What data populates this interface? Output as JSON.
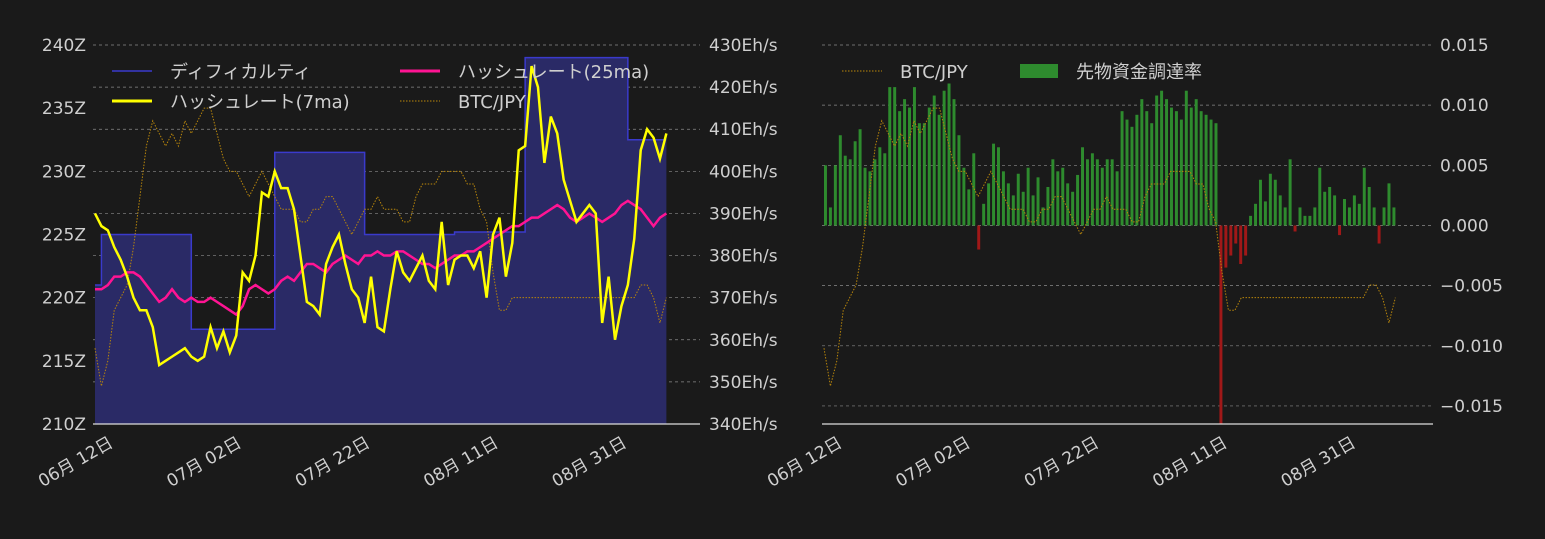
{
  "chart_data": [
    {
      "type": "line",
      "title": "",
      "xlabel": "",
      "ylabel_left": "",
      "ylabel_right": "",
      "x_tick_labels": [
        "06月 12日",
        "07月 02日",
        "07月 22日",
        "08月 11日",
        "08月 31日"
      ],
      "x_tick_days": [
        3,
        23,
        43,
        63,
        83
      ],
      "y_left_ticks": [
        "210Z",
        "215Z",
        "220Z",
        "225Z",
        "230Z",
        "235Z",
        "240Z"
      ],
      "y_left_range": [
        210,
        240
      ],
      "y_right_ticks": [
        "340Eh/s",
        "350Eh/s",
        "360Eh/s",
        "370Eh/s",
        "380Eh/s",
        "390Eh/s",
        "400Eh/s",
        "410Eh/s",
        "420Eh/s",
        "430Eh/s"
      ],
      "y_right_range": [
        340,
        430
      ],
      "legend_position": "top",
      "legend": [
        {
          "label": "ディフィカルティ",
          "key": "difficulty"
        },
        {
          "label": "ハッシュレート(25ma)",
          "key": "hash25"
        },
        {
          "label": "ハッシュレート(7ma)",
          "key": "hash7"
        },
        {
          "label": "BTC/JPY",
          "key": "btc"
        }
      ],
      "difficulty_steps": [
        [
          0,
          221
        ],
        [
          1,
          225
        ],
        [
          15,
          217.5
        ],
        [
          28,
          231.5
        ],
        [
          42,
          225
        ],
        [
          56,
          225.2
        ],
        [
          67,
          239
        ],
        [
          83,
          232.5
        ],
        [
          90,
          232.5
        ]
      ],
      "hash7": [
        390,
        387,
        386,
        382,
        379,
        375,
        370,
        367,
        367,
        363,
        354,
        355,
        356,
        357,
        358,
        356,
        355,
        356,
        363,
        358,
        362,
        357,
        361,
        376,
        374,
        380,
        395,
        394,
        400,
        396,
        396,
        391,
        380,
        369,
        368,
        366,
        378,
        382,
        385,
        378,
        372,
        370,
        364,
        375,
        363,
        362,
        372,
        381,
        376,
        374,
        377,
        380,
        374,
        372,
        388,
        373,
        379,
        380,
        380,
        377,
        381,
        370,
        385,
        389,
        375,
        383,
        405,
        406,
        425,
        420,
        402,
        413,
        409,
        398,
        393,
        388,
        390,
        392,
        390,
        364,
        375,
        360,
        368,
        373,
        384,
        405,
        410,
        408,
        403,
        409
      ],
      "hash25": [
        372,
        372,
        373,
        375,
        375,
        376,
        376,
        375,
        373,
        371,
        369,
        370,
        372,
        370,
        369,
        370,
        369,
        369,
        370,
        369,
        368,
        367,
        366,
        368,
        372,
        373,
        372,
        371,
        372,
        374,
        375,
        374,
        376,
        378,
        378,
        377,
        376,
        378,
        379,
        380,
        379,
        378,
        380,
        380,
        381,
        380,
        380,
        381,
        381,
        380,
        379,
        378,
        378,
        377,
        378,
        379,
        380,
        380,
        381,
        381,
        382,
        383,
        384,
        385,
        386,
        387,
        387,
        388,
        389,
        389,
        390,
        391,
        392,
        391,
        389,
        388,
        389,
        390,
        389,
        388,
        389,
        390,
        392,
        393,
        392,
        391,
        389,
        387,
        389,
        390
      ],
      "btc": [
        216,
        213,
        215,
        219,
        220,
        221,
        224,
        228,
        232,
        234,
        233,
        232,
        233,
        232,
        234,
        233,
        234,
        235,
        235,
        233,
        231,
        230,
        230,
        229,
        228,
        229,
        230,
        229,
        228,
        227,
        227,
        227,
        226,
        226,
        227,
        227,
        228,
        228,
        227,
        226,
        225,
        226,
        227,
        227,
        228,
        227,
        227,
        227,
        226,
        226,
        228,
        229,
        229,
        229,
        230,
        230,
        230,
        230,
        229,
        229,
        227,
        226,
        222,
        219,
        219,
        220,
        220,
        220,
        220,
        220,
        220,
        220,
        220,
        220,
        220,
        220,
        220,
        220,
        220,
        220,
        220,
        220,
        220,
        220,
        220,
        221,
        221,
        220,
        218,
        220
      ]
    },
    {
      "type": "bar",
      "title": "",
      "xlabel": "",
      "ylabel": "",
      "x_tick_labels": [
        "06月 12日",
        "07月 02日",
        "07月 22日",
        "08月 11日",
        "08月 31日"
      ],
      "x_tick_days": [
        3,
        23,
        43,
        63,
        83
      ],
      "y_right_ticks": [
        "0.015",
        "0.010",
        "0.005",
        "0.000",
        "−0.005",
        "−0.010",
        "−0.015"
      ],
      "y_range": [
        -0.0165,
        0.015
      ],
      "legend_position": "top-left",
      "legend": [
        {
          "label": "BTC/JPY",
          "key": "btc"
        },
        {
          "label": "先物資金調達率",
          "key": "funding"
        }
      ],
      "funding_rate": [
        0.005,
        0.0015,
        0.005,
        0.0075,
        0.0058,
        0.0055,
        0.007,
        0.008,
        0.0048,
        0.0045,
        0.0055,
        0.0065,
        0.006,
        0.0115,
        0.0115,
        0.0095,
        0.0105,
        0.0098,
        0.0115,
        0.0085,
        0.0085,
        0.0098,
        0.0108,
        0.0092,
        0.0112,
        0.0118,
        0.0105,
        0.0075,
        0.0048,
        0.003,
        0.006,
        -0.002,
        0.0018,
        0.0035,
        0.0068,
        0.0065,
        0.0045,
        0.0035,
        0.0025,
        0.0043,
        0.0028,
        0.0048,
        0.0025,
        0.004,
        0.0015,
        0.0032,
        0.0055,
        0.0045,
        0.0048,
        0.0035,
        0.0028,
        0.0042,
        0.0065,
        0.0055,
        0.006,
        0.0055,
        0.0048,
        0.0055,
        0.0055,
        0.0045,
        0.0095,
        0.0088,
        0.0082,
        0.0092,
        0.0105,
        0.0095,
        0.0085,
        0.0108,
        0.0112,
        0.0105,
        0.0098,
        0.0095,
        0.0088,
        0.0112,
        0.0098,
        0.0105,
        0.0095,
        0.0092,
        0.0088,
        0.0085,
        -0.0165,
        -0.0035,
        -0.0025,
        -0.0015,
        -0.0032,
        -0.0025,
        0.0008,
        0.0018,
        0.0038,
        0.002,
        0.0043,
        0.0038,
        0.0025,
        0.0015,
        0.0055,
        -0.0005,
        0.0015,
        0.0008,
        0.0008,
        0.0015,
        0.0048,
        0.0028,
        0.0032,
        0.0025,
        -0.0008,
        0.0022,
        0.0015,
        0.0025,
        0.0018,
        0.0048,
        0.0032,
        0.0015,
        -0.0015,
        0.0015,
        0.0035,
        0.0015
      ],
      "btc": [
        216,
        213,
        215,
        219,
        220,
        221,
        224,
        228,
        232,
        234,
        233,
        232,
        233,
        232,
        234,
        233,
        234,
        235,
        235,
        233,
        231,
        230,
        230,
        229,
        228,
        229,
        230,
        229,
        228,
        227,
        227,
        227,
        226,
        226,
        227,
        227,
        228,
        228,
        227,
        226,
        225,
        226,
        227,
        227,
        228,
        227,
        227,
        227,
        226,
        226,
        228,
        229,
        229,
        229,
        230,
        230,
        230,
        230,
        229,
        229,
        227,
        226,
        222,
        219,
        219,
        220,
        220,
        220,
        220,
        220,
        220,
        220,
        220,
        220,
        220,
        220,
        220,
        220,
        220,
        220,
        220,
        220,
        220,
        220,
        220,
        221,
        221,
        220,
        218,
        220
      ]
    }
  ],
  "colors": {
    "background": "#1a1a1a",
    "grid": "#8a8a8a",
    "difficulty_line": "#3a3acc",
    "difficulty_fill": "#2a2a66",
    "hash7": "#ffff00",
    "hash25": "#ff1493",
    "btc": "#b8860b",
    "funding_pos": "#2e8b2e",
    "funding_neg": "#a01818"
  }
}
